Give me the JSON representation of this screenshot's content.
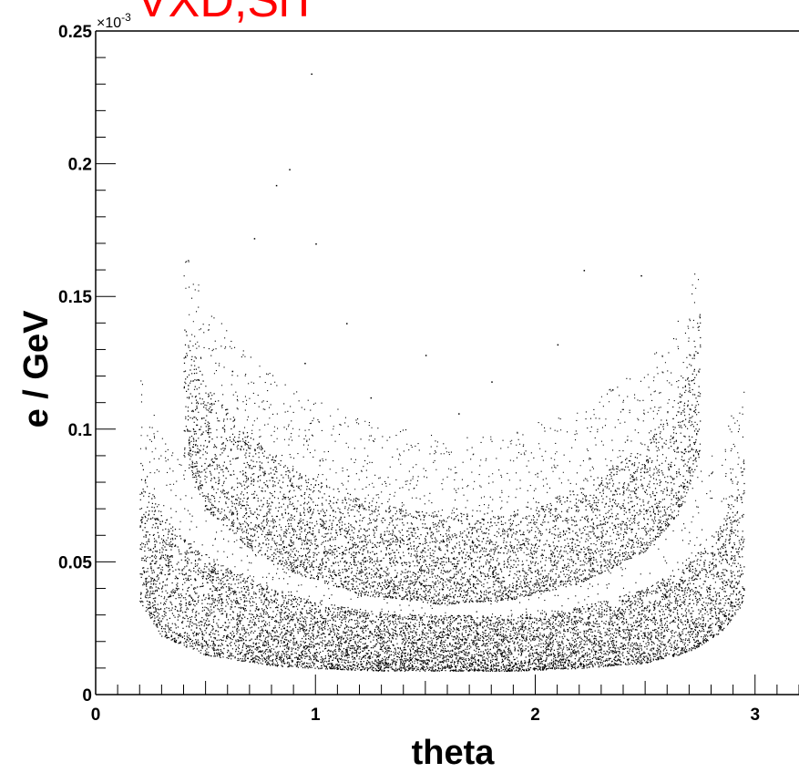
{
  "title": "VXD,SiT",
  "title_color": "#ff0000",
  "chart_data": {
    "type": "scatter",
    "title": "VXD,SiT",
    "xlabel": "theta",
    "ylabel": "e / GeV",
    "y_exponent_label": "×10",
    "y_exponent_power": "-3",
    "xlim": [
      0,
      3.2
    ],
    "ylim": [
      0,
      0.25
    ],
    "x_ticks": [
      0,
      1,
      2,
      3
    ],
    "x_tick_labels": [
      "0",
      "1",
      "2",
      "3"
    ],
    "y_ticks": [
      0,
      0.05,
      0.1,
      0.15,
      0.2,
      0.25
    ],
    "y_tick_labels": [
      "0",
      "0.05",
      "0.1",
      "0.15",
      "0.2",
      "0.25"
    ],
    "grid": false,
    "marker_color": "#000000",
    "series": [
      {
        "theta_range": [
          0.2,
          2.95
        ],
        "band_min": [
          [
            0.2,
            0.035
          ],
          [
            0.3,
            0.022
          ],
          [
            0.5,
            0.015
          ],
          [
            0.8,
            0.011
          ],
          [
            1.0,
            0.01
          ],
          [
            1.3,
            0.009
          ],
          [
            1.57,
            0.009
          ],
          [
            1.9,
            0.009
          ],
          [
            2.2,
            0.01
          ],
          [
            2.5,
            0.012
          ],
          [
            2.7,
            0.016
          ],
          [
            2.85,
            0.024
          ],
          [
            2.95,
            0.035
          ]
        ],
        "band_max": [
          [
            0.2,
            0.09
          ],
          [
            0.3,
            0.068
          ],
          [
            0.5,
            0.052
          ],
          [
            0.8,
            0.04
          ],
          [
            1.0,
            0.035
          ],
          [
            1.3,
            0.031
          ],
          [
            1.57,
            0.03
          ],
          [
            1.9,
            0.03
          ],
          [
            2.2,
            0.033
          ],
          [
            2.5,
            0.04
          ],
          [
            2.7,
            0.05
          ],
          [
            2.85,
            0.065
          ],
          [
            2.95,
            0.09
          ]
        ]
      },
      {
        "theta_range": [
          0.4,
          2.75
        ],
        "band_min": [
          [
            0.4,
            0.09
          ],
          [
            0.5,
            0.07
          ],
          [
            0.7,
            0.055
          ],
          [
            0.9,
            0.046
          ],
          [
            1.2,
            0.038
          ],
          [
            1.57,
            0.034
          ],
          [
            1.9,
            0.036
          ],
          [
            2.2,
            0.042
          ],
          [
            2.5,
            0.054
          ],
          [
            2.65,
            0.068
          ],
          [
            2.75,
            0.09
          ]
        ],
        "band_max": [
          [
            0.4,
            0.14
          ],
          [
            0.5,
            0.118
          ],
          [
            0.7,
            0.098
          ],
          [
            0.9,
            0.085
          ],
          [
            1.2,
            0.074
          ],
          [
            1.57,
            0.068
          ],
          [
            1.9,
            0.07
          ],
          [
            2.2,
            0.078
          ],
          [
            2.5,
            0.094
          ],
          [
            2.65,
            0.112
          ],
          [
            2.75,
            0.145
          ]
        ]
      }
    ],
    "outlier_points": [
      [
        0.98,
        0.234
      ],
      [
        0.88,
        0.198
      ],
      [
        0.82,
        0.192
      ],
      [
        0.72,
        0.172
      ],
      [
        1.0,
        0.17
      ],
      [
        1.14,
        0.14
      ],
      [
        2.22,
        0.16
      ],
      [
        2.48,
        0.158
      ],
      [
        1.5,
        0.128
      ],
      [
        2.1,
        0.132
      ],
      [
        0.95,
        0.125
      ],
      [
        1.8,
        0.118
      ],
      [
        2.35,
        0.115
      ],
      [
        1.25,
        0.112
      ],
      [
        0.62,
        0.122
      ],
      [
        1.65,
        0.106
      ]
    ]
  }
}
